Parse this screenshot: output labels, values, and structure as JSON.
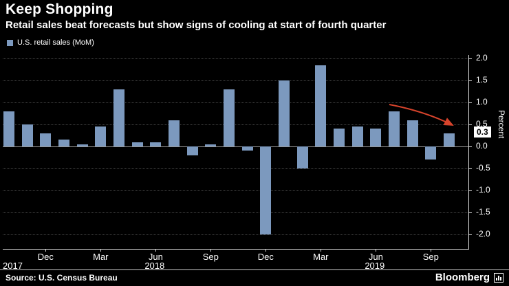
{
  "header": {
    "title": "Keep Shopping",
    "subtitle": "Retail sales beat forecasts but show signs of cooling at start of fourth quarter"
  },
  "legend": {
    "label": "U.S. retail sales (MoM)",
    "swatch_color": "#7C99BE"
  },
  "chart_data": {
    "type": "bar",
    "title": "Keep Shopping",
    "subtitle": "Retail sales beat forecasts but show signs of cooling at start of fourth quarter",
    "series_name": "U.S. retail sales (MoM)",
    "x": [
      "Oct 2017",
      "Nov 2017",
      "Dec 2017",
      "Jan 2018",
      "Feb 2018",
      "Mar 2018",
      "Apr 2018",
      "May 2018",
      "Jun 2018",
      "Jul 2018",
      "Aug 2018",
      "Sep 2018",
      "Oct 2018",
      "Nov 2018",
      "Dec 2018",
      "Jan 2019",
      "Feb 2019",
      "Mar 2019",
      "Apr 2019",
      "May 2019",
      "Jun 2019",
      "Jul 2019",
      "Aug 2019",
      "Sep 2019",
      "Oct 2019"
    ],
    "values": [
      0.8,
      0.5,
      0.3,
      0.15,
      0.05,
      0.45,
      1.3,
      0.1,
      0.1,
      0.6,
      -0.2,
      0.05,
      1.3,
      -0.1,
      -2.0,
      1.5,
      -0.5,
      1.85,
      0.4,
      0.45,
      0.4,
      0.8,
      0.6,
      -0.3,
      0.3
    ],
    "bar_color": "#7C99BE",
    "ylabel": "Percent",
    "ylim": [
      -2.0,
      2.0
    ],
    "grid": "dotted-horizontal",
    "legend_position": "top-left",
    "yticks": [
      {
        "v": 2.0,
        "label": "2.0"
      },
      {
        "v": 1.5,
        "label": "1.5"
      },
      {
        "v": 1.0,
        "label": "1.0"
      },
      {
        "v": 0.5,
        "label": "0.5"
      },
      {
        "v": 0.0,
        "label": "0.0"
      },
      {
        "v": -0.5,
        "label": "-0.5"
      },
      {
        "v": -1.0,
        "label": "-1.0"
      },
      {
        "v": -1.5,
        "label": "-1.5"
      },
      {
        "v": -2.0,
        "label": "-2.0"
      }
    ],
    "xticks": [
      {
        "i": 2,
        "label": "Dec"
      },
      {
        "i": 5,
        "label": "Mar"
      },
      {
        "i": 8,
        "label": "Jun"
      },
      {
        "i": 11,
        "label": "Sep"
      },
      {
        "i": 14,
        "label": "Dec"
      },
      {
        "i": 17,
        "label": "Mar"
      },
      {
        "i": 20,
        "label": "Jun"
      },
      {
        "i": 23,
        "label": "Sep"
      }
    ],
    "year_labels": [
      {
        "i": 0,
        "label": "2017",
        "align": "left"
      },
      {
        "i": 8,
        "label": "2018",
        "align": "center"
      },
      {
        "i": 20,
        "label": "2019",
        "align": "center"
      }
    ],
    "highlight": {
      "label": "0.3",
      "value": 0.3,
      "bg": "#ffffff",
      "fg": "#000000"
    },
    "annotation": {
      "type": "arrow",
      "color": "#d8442c",
      "meaning": "points to cooling latest value"
    }
  },
  "footer": {
    "source": "Source: U.S. Census Bureau",
    "brand": "Bloomberg"
  }
}
